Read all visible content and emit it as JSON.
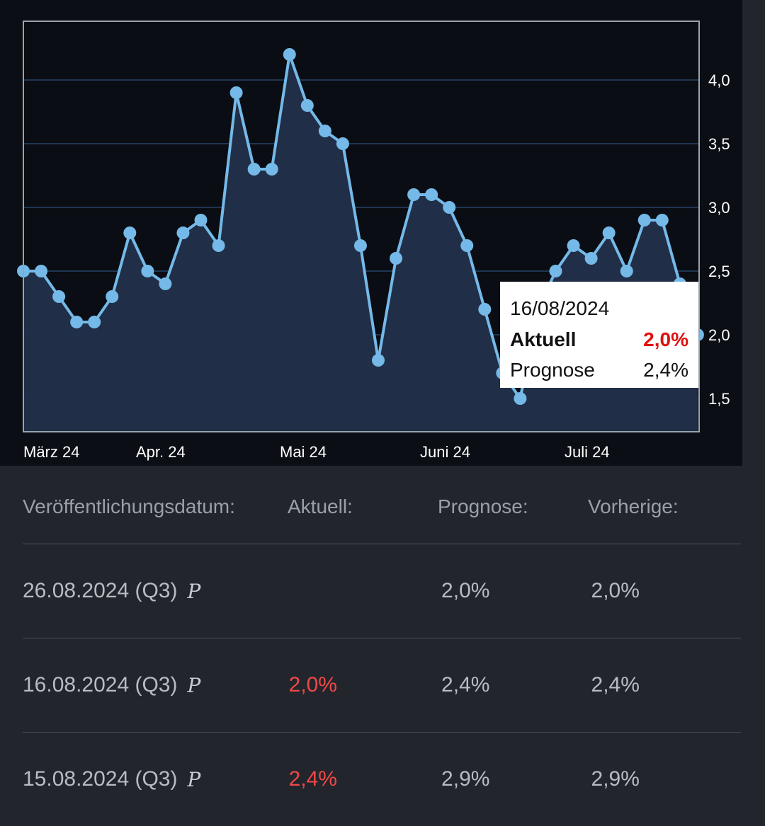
{
  "chart_data": {
    "type": "area",
    "x_tick_labels": [
      "März 24",
      "Apr. 24",
      "Mai 24",
      "Juni 24",
      "Juli 24"
    ],
    "y_tick_labels": [
      "1,5",
      "2,0",
      "2,5",
      "3,0",
      "3,5",
      "4,0"
    ],
    "y_ticks": [
      1.5,
      2.0,
      2.5,
      3.0,
      3.5,
      4.0
    ],
    "ylim": [
      1.25,
      4.45
    ],
    "grid": true,
    "colors": {
      "line": "#74b9e8",
      "fill": "#22304a",
      "background": "#0b0e14",
      "grid": "#1f3550"
    },
    "values": [
      2.5,
      2.5,
      2.3,
      2.1,
      2.1,
      2.3,
      2.8,
      2.5,
      2.4,
      2.8,
      2.9,
      2.7,
      3.9,
      3.3,
      3.3,
      4.2,
      3.8,
      3.6,
      3.5,
      2.7,
      1.8,
      2.6,
      3.1,
      3.1,
      3.0,
      2.7,
      2.2,
      1.7,
      1.5,
      2.2,
      2.5,
      2.7,
      2.6,
      2.8,
      2.5,
      2.9,
      2.9,
      2.4,
      2.0
    ]
  },
  "tooltip": {
    "date": "16/08/2024",
    "actual_label": "Aktuell",
    "actual_value": "2,0%",
    "forecast_label": "Prognose",
    "forecast_value": "2,4%"
  },
  "table": {
    "headers": {
      "date": "Veröffentlichungsdatum:",
      "actual": "Aktuell:",
      "forecast": "Prognose:",
      "previous": "Vorherige:"
    },
    "rows": [
      {
        "date": "26.08.2024 (Q3)",
        "flag": "P",
        "actual": "",
        "forecast": "2,0%",
        "previous": "2,0%"
      },
      {
        "date": "16.08.2024 (Q3)",
        "flag": "P",
        "actual": "2,0%",
        "forecast": "2,4%",
        "previous": "2,4%"
      },
      {
        "date": "15.08.2024 (Q3)",
        "flag": "P",
        "actual": "2,4%",
        "forecast": "2,9%",
        "previous": "2,9%"
      }
    ]
  }
}
